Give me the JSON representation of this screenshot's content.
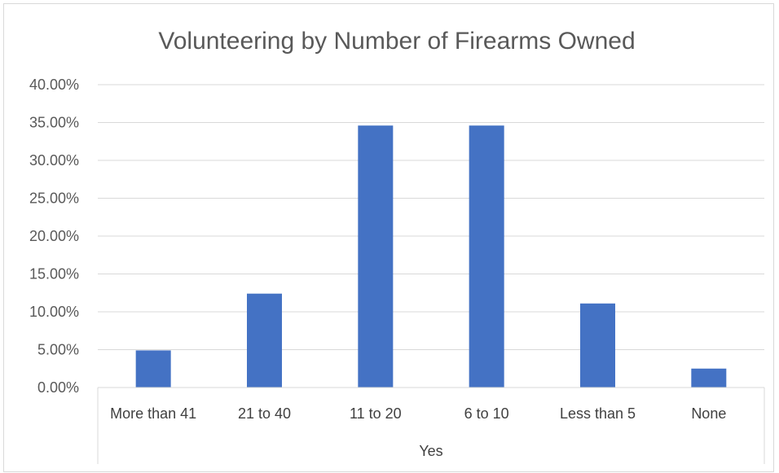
{
  "chart_data": {
    "type": "bar",
    "title": "Volunteering by Number of Firearms Owned",
    "categories": [
      "More than 41",
      "21 to 40",
      "11 to 20",
      "6 to 10",
      "Less than 5",
      "None"
    ],
    "group_label": "Yes",
    "values": [
      4.9,
      12.4,
      34.6,
      34.6,
      11.1,
      2.5
    ],
    "ylim": [
      0,
      40
    ],
    "yticks": [
      "0.00%",
      "5.00%",
      "10.00%",
      "15.00%",
      "20.00%",
      "25.00%",
      "30.00%",
      "35.00%",
      "40.00%"
    ],
    "grid": true,
    "bar_color": "#4472c4"
  }
}
